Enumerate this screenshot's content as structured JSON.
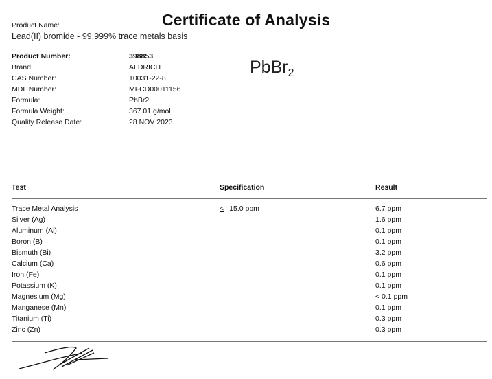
{
  "title": "Certificate of Analysis",
  "product_name_label": "Product Name:",
  "product_name": "Lead(II) bromide - 99.999% trace metals basis",
  "formula_display": {
    "base": "PbBr",
    "subscript": "2"
  },
  "details": [
    {
      "label": "Product Number:",
      "value": "398853",
      "bold": true
    },
    {
      "label": "Brand:",
      "value": "ALDRICH"
    },
    {
      "label": "CAS Number:",
      "value": "10031-22-8"
    },
    {
      "label": "MDL Number:",
      "value": "MFCD00011156"
    },
    {
      "label": "Formula:",
      "value": "PbBr2"
    },
    {
      "label": "Formula Weight:",
      "value": "367.01 g/mol"
    },
    {
      "label": "Quality Release Date:",
      "value": "28 NOV 2023"
    }
  ],
  "table": {
    "headers": {
      "test": "Test",
      "spec": "Specification",
      "result": "Result"
    },
    "rows": [
      {
        "test": "Trace Metal Analysis",
        "spec_symbol": "<",
        "spec": "15.0 ppm",
        "result": "6.7 ppm"
      },
      {
        "test": "Silver (Ag)",
        "result": "1.6 ppm"
      },
      {
        "test": "Aluminum (Al)",
        "result": "0.1 ppm"
      },
      {
        "test": "Boron (B)",
        "result": "0.1 ppm"
      },
      {
        "test": "Bismuth (Bi)",
        "result": "3.2 ppm"
      },
      {
        "test": "Calcium (Ca)",
        "result": "0.6 ppm"
      },
      {
        "test": "Iron (Fe)",
        "result": "0.1 ppm"
      },
      {
        "test": "Potassium (K)",
        "result": "0.1 ppm"
      },
      {
        "test": "Magnesium (Mg)",
        "result": "<  0.1 ppm"
      },
      {
        "test": "Manganese (Mn)",
        "result": "0.1 ppm"
      },
      {
        "test": "Titanium (Ti)",
        "result": "0.3 ppm"
      },
      {
        "test": "Zinc (Zn)",
        "result": "0.3 ppm"
      }
    ]
  }
}
